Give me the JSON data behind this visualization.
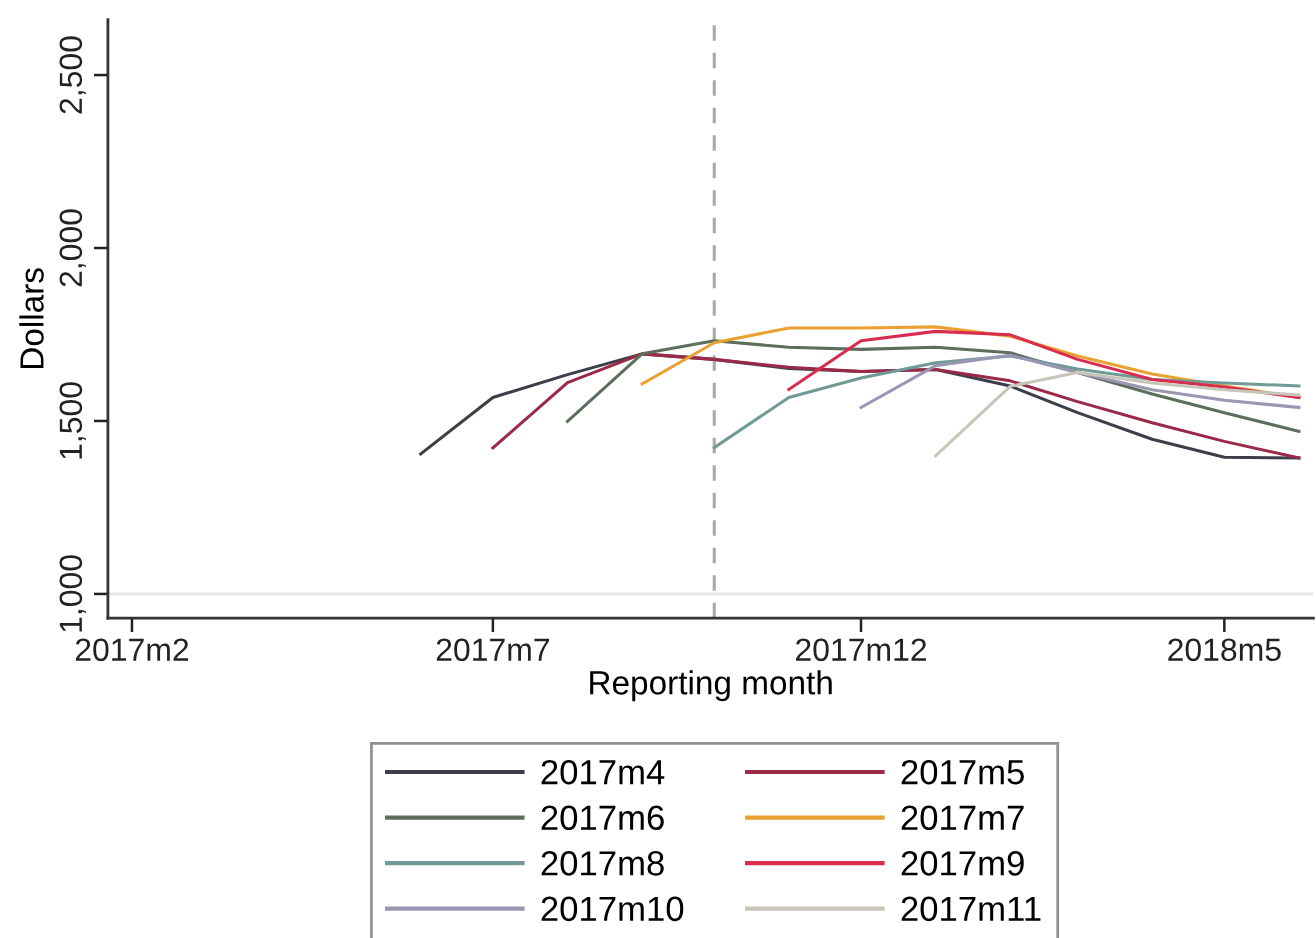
{
  "chart_data": {
    "type": "line",
    "xlabel": "Reporting month",
    "ylabel": "Dollars",
    "xlim": [
      "2017-01-22",
      "2018-06-07"
    ],
    "xticks": [
      {
        "value": "2017-02",
        "label": "2017m2"
      },
      {
        "value": "2017-07",
        "label": "2017m7"
      },
      {
        "value": "2017-12",
        "label": "2017m12"
      },
      {
        "value": "2018-05",
        "label": "2018m5"
      }
    ],
    "ylim": [
      930,
      2660
    ],
    "yticks": [
      {
        "value": 1000,
        "label": "1,000"
      },
      {
        "value": 1500,
        "label": "1,500"
      },
      {
        "value": 2000,
        "label": "2,000"
      },
      {
        "value": 2500,
        "label": "2,500"
      }
    ],
    "legend": "bottom",
    "line_style": "solid",
    "marker": "none",
    "ref_lines": [
      {
        "axis": "x",
        "value": "2017-10",
        "color": "#a8a8a8",
        "line_style": "dashed"
      },
      {
        "axis": "y",
        "value": 1000,
        "color": "#e6e6e6"
      }
    ],
    "series": [
      {
        "name": "2017m4",
        "color": "#3c3f4a",
        "x": [
          "2017-06",
          "2017-07",
          "2017-08",
          "2017-09",
          "2017-10",
          "2017-11",
          "2017-12",
          "2018-01",
          "2018-02",
          "2018-03",
          "2018-04",
          "2018-05",
          "2018-06"
        ],
        "values": [
          1405,
          1568,
          1634,
          1694,
          1678,
          1652,
          1643,
          1649,
          1601,
          1524,
          1447,
          1395,
          1393
        ]
      },
      {
        "name": "2017m5",
        "color": "#9a2a48",
        "x": [
          "2017-07",
          "2017-08",
          "2017-09",
          "2017-10",
          "2017-11",
          "2017-12",
          "2018-01",
          "2018-02",
          "2018-03",
          "2018-04",
          "2018-05",
          "2018-06"
        ],
        "values": [
          1422,
          1611,
          1694,
          1678,
          1655,
          1643,
          1649,
          1616,
          1556,
          1495,
          1441,
          1393
        ]
      },
      {
        "name": "2017m6",
        "color": "#5c6e5c",
        "x": [
          "2017-08",
          "2017-09",
          "2017-10",
          "2017-11",
          "2017-12",
          "2018-01",
          "2018-02",
          "2018-03",
          "2018-04",
          "2018-05",
          "2018-06"
        ],
        "values": [
          1499,
          1694,
          1732,
          1713,
          1707,
          1713,
          1697,
          1640,
          1578,
          1524,
          1470
        ]
      },
      {
        "name": "2017m7",
        "color": "#eba032",
        "x": [
          "2017-09",
          "2017-10",
          "2017-11",
          "2017-12",
          "2018-01",
          "2018-02",
          "2018-03",
          "2018-04",
          "2018-05",
          "2018-06"
        ],
        "values": [
          1607,
          1726,
          1769,
          1769,
          1772,
          1745,
          1688,
          1636,
          1601,
          1568
        ]
      },
      {
        "name": "2017m8",
        "color": "#6f9a96",
        "x": [
          "2017-10",
          "2017-11",
          "2017-12",
          "2018-01",
          "2018-02",
          "2018-03",
          "2018-04",
          "2018-05",
          "2018-06"
        ],
        "values": [
          1423,
          1568,
          1624,
          1668,
          1688,
          1650,
          1620,
          1610,
          1601
        ]
      },
      {
        "name": "2017m9",
        "color": "#d82c50",
        "x": [
          "2017-11",
          "2017-12",
          "2018-01",
          "2018-02",
          "2018-03",
          "2018-04",
          "2018-05",
          "2018-06"
        ],
        "values": [
          1591,
          1732,
          1759,
          1749,
          1678,
          1620,
          1598,
          1568
        ]
      },
      {
        "name": "2017m10",
        "color": "#9a96b4",
        "x": [
          "2017-12",
          "2018-01",
          "2018-02",
          "2018-03",
          "2018-04",
          "2018-05",
          "2018-06"
        ],
        "values": [
          1539,
          1660,
          1690,
          1640,
          1590,
          1560,
          1539
        ]
      },
      {
        "name": "2017m11",
        "color": "#c8c6b8",
        "x": [
          "2018-01",
          "2018-02",
          "2018-03",
          "2018-04",
          "2018-05",
          "2018-06"
        ],
        "values": [
          1399,
          1600,
          1640,
          1610,
          1590,
          1575
        ]
      }
    ]
  }
}
